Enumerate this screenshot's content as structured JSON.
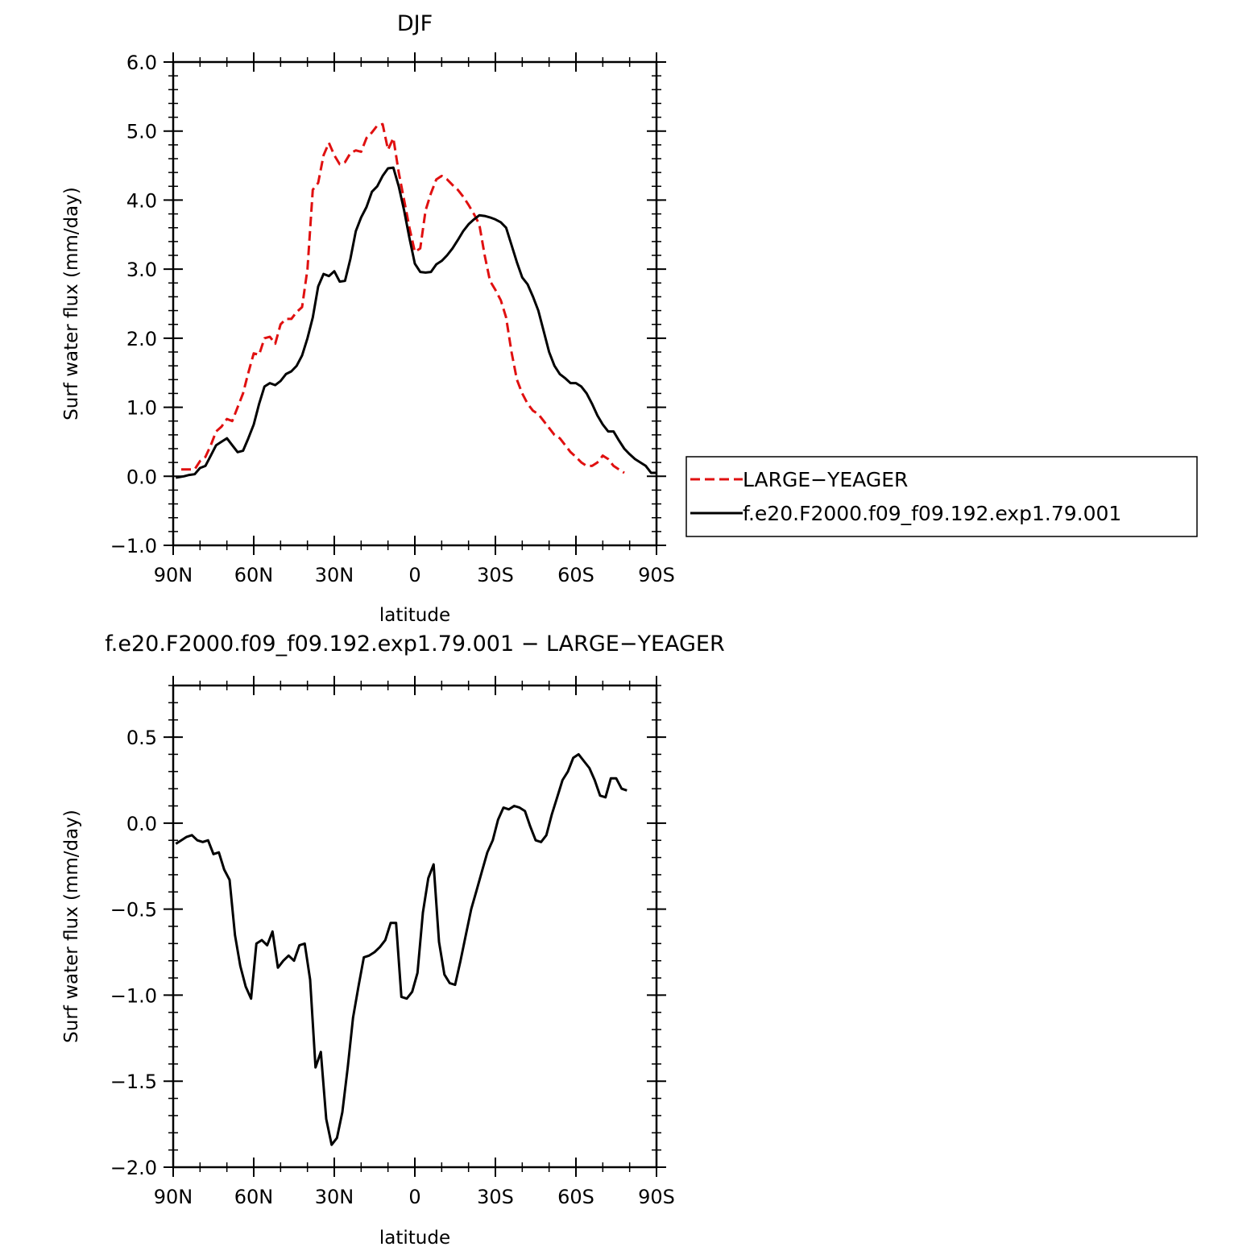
{
  "colors": {
    "red": "#e01010",
    "black": "#000000"
  },
  "top_plot": {
    "title": "DJF",
    "ylabel": "Surf water flux (mm/day)",
    "xlabel": "latitude",
    "legend": {
      "items": [
        {
          "label": "LARGE−YEAGER",
          "color": "#e01010",
          "dash": true
        },
        {
          "label": "f.e20.F2000.f09_f09.192.exp1.79.001",
          "color": "#000000",
          "dash": false
        }
      ]
    }
  },
  "bottom_plot": {
    "title": "f.e20.F2000.f09_f09.192.exp1.79.001 − LARGE−YEAGER",
    "ylabel": "Surf water flux (mm/day)",
    "xlabel": "latitude"
  },
  "chart_data": [
    {
      "type": "line",
      "title": "DJF",
      "xlabel": "latitude",
      "ylabel": "Surf water flux (mm/day)",
      "xlim": [
        90,
        -90
      ],
      "ylim": [
        -1.0,
        6.0
      ],
      "x_ticks": [
        90,
        60,
        30,
        0,
        -30,
        -60,
        -90
      ],
      "x_tick_labels": [
        "90N",
        "60N",
        "30N",
        "0",
        "30S",
        "60S",
        "90S"
      ],
      "y_ticks": [
        -1.0,
        0.0,
        1.0,
        2.0,
        3.0,
        4.0,
        5.0,
        6.0
      ],
      "y_tick_labels": [
        "−1.0",
        "0.0",
        "1.0",
        "2.0",
        "3.0",
        "4.0",
        "5.0",
        "6.0"
      ],
      "legend_position": "right",
      "series": [
        {
          "name": "LARGE−YEAGER",
          "color": "#e01010",
          "dash": true,
          "x": [
            87,
            82,
            80,
            78,
            76,
            74,
            72,
            70,
            68,
            66,
            64,
            62,
            60,
            58,
            56,
            54,
            52,
            50,
            48,
            46,
            44,
            42,
            40,
            38,
            36,
            34,
            32,
            30,
            28,
            26,
            24,
            22,
            20,
            18,
            16,
            14,
            12,
            10,
            8,
            6,
            4,
            2,
            0,
            -2,
            -4,
            -6,
            -8,
            -10,
            -12,
            -14,
            -16,
            -18,
            -20,
            -22,
            -24,
            -26,
            -28,
            -30,
            -32,
            -34,
            -36,
            -38,
            -40,
            -42,
            -44,
            -46,
            -48,
            -50,
            -52,
            -54,
            -56,
            -58,
            -60,
            -62,
            -64,
            -66,
            -68,
            -70,
            -72,
            -74,
            -76,
            -78
          ],
          "y": [
            0.1,
            0.1,
            0.22,
            0.28,
            0.45,
            0.65,
            0.72,
            0.83,
            0.8,
            1.0,
            1.2,
            1.5,
            1.78,
            1.76,
            2.0,
            2.02,
            1.92,
            2.2,
            2.28,
            2.28,
            2.38,
            2.45,
            3.0,
            4.15,
            4.25,
            4.65,
            4.83,
            4.65,
            4.52,
            4.55,
            4.68,
            4.72,
            4.7,
            4.9,
            4.98,
            5.08,
            5.1,
            4.73,
            4.9,
            4.4,
            4.0,
            3.6,
            3.25,
            3.3,
            3.85,
            4.1,
            4.3,
            4.35,
            4.3,
            4.22,
            4.15,
            4.05,
            3.93,
            3.8,
            3.65,
            3.2,
            2.83,
            2.7,
            2.55,
            2.3,
            1.8,
            1.4,
            1.2,
            1.05,
            0.95,
            0.9,
            0.8,
            0.7,
            0.6,
            0.55,
            0.45,
            0.35,
            0.28,
            0.2,
            0.15,
            0.15,
            0.2,
            0.3,
            0.25,
            0.15,
            0.1,
            0.05
          ]
        },
        {
          "name": "f.e20.F2000.f09_f09.192.exp1.79.001",
          "color": "#000000",
          "dash": false,
          "x": [
            89,
            86,
            84,
            82,
            80,
            78,
            76,
            74,
            72,
            70,
            68,
            66,
            64,
            62,
            60,
            58,
            56,
            54,
            52,
            50,
            48,
            46,
            44,
            42,
            40,
            38,
            36,
            34,
            32,
            30,
            28,
            26,
            24,
            22,
            20,
            18,
            16,
            14,
            12,
            10,
            8,
            6,
            4,
            2,
            0,
            -2,
            -4,
            -6,
            -8,
            -10,
            -12,
            -14,
            -16,
            -18,
            -20,
            -22,
            -24,
            -26,
            -28,
            -30,
            -32,
            -34,
            -36,
            -38,
            -40,
            -42,
            -44,
            -46,
            -48,
            -50,
            -52,
            -54,
            -56,
            -58,
            -60,
            -62,
            -64,
            -66,
            -68,
            -70,
            -72,
            -74,
            -76,
            -78,
            -80,
            -82,
            -84,
            -86,
            -88,
            -90
          ],
          "y": [
            -0.02,
            0.0,
            0.02,
            0.03,
            0.12,
            0.15,
            0.3,
            0.45,
            0.5,
            0.55,
            0.45,
            0.35,
            0.37,
            0.55,
            0.75,
            1.05,
            1.3,
            1.35,
            1.32,
            1.38,
            1.48,
            1.52,
            1.6,
            1.75,
            2.0,
            2.3,
            2.75,
            2.93,
            2.9,
            2.97,
            2.82,
            2.83,
            3.15,
            3.55,
            3.75,
            3.9,
            4.12,
            4.2,
            4.35,
            4.46,
            4.47,
            4.2,
            3.85,
            3.45,
            3.08,
            2.96,
            2.95,
            2.96,
            3.07,
            3.12,
            3.2,
            3.3,
            3.42,
            3.55,
            3.65,
            3.72,
            3.78,
            3.77,
            3.75,
            3.72,
            3.68,
            3.6,
            3.35,
            3.1,
            2.88,
            2.78,
            2.6,
            2.4,
            2.1,
            1.8,
            1.6,
            1.48,
            1.42,
            1.35,
            1.35,
            1.3,
            1.2,
            1.05,
            0.88,
            0.75,
            0.65,
            0.65,
            0.52,
            0.4,
            0.32,
            0.25,
            0.2,
            0.15,
            0.05,
            0.05
          ]
        }
      ]
    },
    {
      "type": "line",
      "title": "f.e20.F2000.f09_f09.192.exp1.79.001 − LARGE−YEAGER",
      "xlabel": "latitude",
      "ylabel": "Surf water flux (mm/day)",
      "xlim": [
        90,
        -90
      ],
      "ylim": [
        -2.0,
        0.8
      ],
      "x_ticks": [
        90,
        60,
        30,
        0,
        -30,
        -60,
        -90
      ],
      "x_tick_labels": [
        "90N",
        "60N",
        "30N",
        "0",
        "30S",
        "60S",
        "90S"
      ],
      "y_ticks": [
        -2.0,
        -1.5,
        -1.0,
        -0.5,
        0.0,
        0.5
      ],
      "y_tick_labels": [
        "−2.0",
        "−1.5",
        "−1.0",
        "−0.5",
        "0.0",
        "0.5"
      ],
      "series": [
        {
          "name": "",
          "color": "#000000",
          "dash": false,
          "x": [
            89,
            87,
            85,
            83,
            81,
            79,
            77,
            75,
            73,
            71,
            69,
            67,
            65,
            63,
            61,
            59,
            57,
            55,
            53,
            51,
            49,
            47,
            45,
            43,
            41,
            39,
            37,
            35,
            33,
            31,
            29,
            27,
            25,
            23,
            21,
            19,
            17,
            15,
            13,
            11,
            9,
            7,
            5,
            3,
            1,
            -1,
            -3,
            -5,
            -7,
            -9,
            -11,
            -13,
            -15,
            -17,
            -19,
            -21,
            -23,
            -25,
            -27,
            -29,
            -31,
            -33,
            -35,
            -37,
            -39,
            -41,
            -43,
            -45,
            -47,
            -49,
            -51,
            -53,
            -55,
            -57,
            -59,
            -61,
            -63,
            -65,
            -67,
            -69,
            -71,
            -73,
            -75,
            -77,
            -79
          ],
          "y": [
            -0.12,
            -0.1,
            -0.08,
            -0.07,
            -0.1,
            -0.11,
            -0.1,
            -0.18,
            -0.17,
            -0.27,
            -0.33,
            -0.65,
            -0.83,
            -0.95,
            -1.02,
            -0.7,
            -0.68,
            -0.71,
            -0.63,
            -0.84,
            -0.8,
            -0.77,
            -0.8,
            -0.71,
            -0.7,
            -0.91,
            -1.42,
            -1.33,
            -1.72,
            -1.87,
            -1.83,
            -1.68,
            -1.42,
            -1.13,
            -0.95,
            -0.78,
            -0.77,
            -0.75,
            -0.72,
            -0.68,
            -0.58,
            -0.58,
            -1.01,
            -1.02,
            -0.98,
            -0.87,
            -0.52,
            -0.32,
            -0.24,
            -0.69,
            -0.88,
            -0.93,
            -0.94,
            -0.8,
            -0.65,
            -0.5,
            -0.39,
            -0.28,
            -0.17,
            -0.1,
            0.02,
            0.09,
            0.08,
            0.1,
            0.09,
            0.07,
            -0.02,
            -0.1,
            -0.11,
            -0.07,
            0.05,
            0.15,
            0.25,
            0.3,
            0.38,
            0.4,
            0.36,
            0.32,
            0.25,
            0.16,
            0.15,
            0.26,
            0.26,
            0.2,
            0.19
          ]
        }
      ]
    }
  ]
}
